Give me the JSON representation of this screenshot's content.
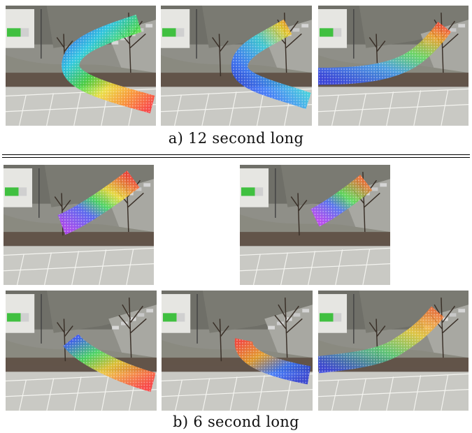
{
  "figure": {
    "panel_a": {
      "caption": "a) 12 second long",
      "frames": [
        {
          "path_hues": [
            "blue",
            "cyan",
            "green",
            "yellow",
            "red"
          ]
        },
        {
          "path_hues": [
            "red",
            "yellow",
            "cyan",
            "blue"
          ]
        },
        {
          "path_hues": [
            "blue",
            "green",
            "orange"
          ]
        }
      ]
    },
    "panel_b": {
      "caption": "b) 6 second long",
      "top_frames": [
        {
          "path_hues": [
            "violet",
            "blue",
            "green",
            "yellow",
            "red"
          ]
        },
        {
          "path_hues": [
            "violet",
            "blue",
            "green",
            "orange"
          ]
        }
      ],
      "bottom_frames": [
        {
          "path_hues": [
            "blue",
            "green",
            "yellow",
            "red"
          ]
        },
        {
          "path_hues": [
            "red",
            "orange",
            "blue"
          ]
        },
        {
          "path_hues": [
            "blue",
            "green",
            "yellow",
            "orange"
          ]
        }
      ]
    }
  }
}
